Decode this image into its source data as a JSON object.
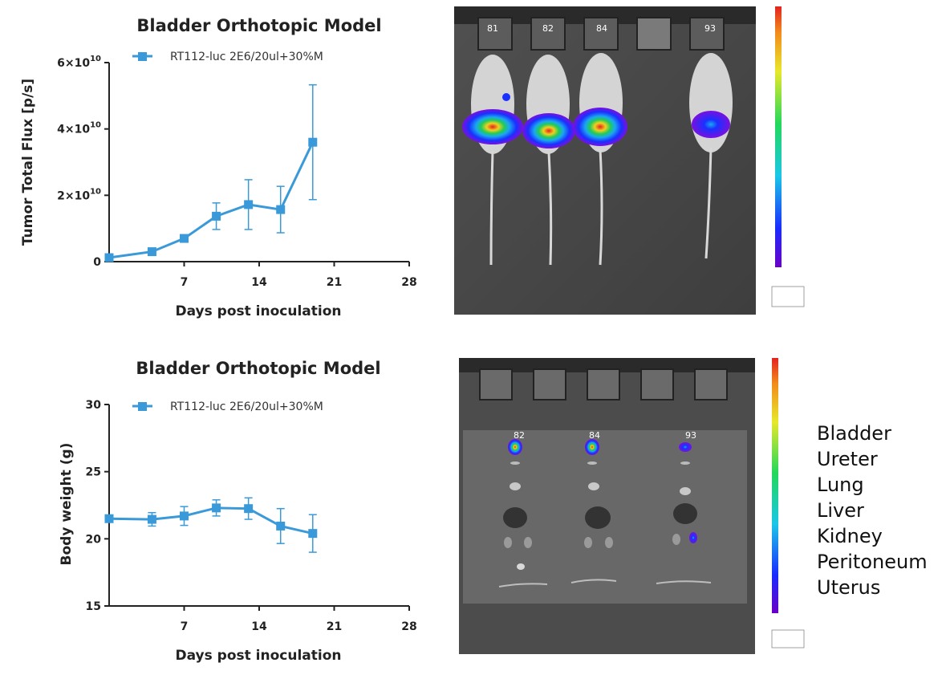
{
  "chart_data": [
    {
      "type": "line",
      "title": "Bladder Orthotopic Model",
      "xlabel": "Days post  inoculation",
      "ylabel": "Tumor Total Flux [p/s]",
      "xlim": [
        0,
        28
      ],
      "ylim": [
        0,
        60000000000.0
      ],
      "x_ticks": [
        7,
        14,
        21,
        28
      ],
      "y_ticks": [
        {
          "value": 0,
          "label": "0",
          "exp": ""
        },
        {
          "value": 20000000000.0,
          "label": "2×10",
          "exp": "10"
        },
        {
          "value": 40000000000.0,
          "label": "4×10",
          "exp": "10"
        },
        {
          "value": 60000000000.0,
          "label": "6×10",
          "exp": "10"
        }
      ],
      "legend": "top-left",
      "series": [
        {
          "name": "RT112-luc 2E6/20ul+30%M",
          "color": "#3a9ad9",
          "x": [
            0,
            4,
            7,
            10,
            13,
            16,
            19
          ],
          "y": [
            1200000000.0,
            3000000000.0,
            7000000000.0,
            13700000000.0,
            17200000000.0,
            15700000000.0,
            36000000000.0
          ],
          "err": [
            300000000.0,
            500000000.0,
            900000000.0,
            4000000000.0,
            7500000000.0,
            7000000000.0,
            17300000000.0
          ]
        }
      ]
    },
    {
      "type": "line",
      "title": "Bladder Orthotopic Model",
      "xlabel": "Days post  inoculation",
      "ylabel": "Body weight (g)",
      "xlim": [
        0,
        28
      ],
      "ylim": [
        15,
        30
      ],
      "x_ticks": [
        7,
        14,
        21,
        28
      ],
      "y_ticks": [
        {
          "value": 15,
          "label": "15",
          "exp": ""
        },
        {
          "value": 20,
          "label": "20",
          "exp": ""
        },
        {
          "value": 25,
          "label": "25",
          "exp": ""
        },
        {
          "value": 30,
          "label": "30",
          "exp": ""
        }
      ],
      "legend": "top-left",
      "series": [
        {
          "name": "RT112-luc 2E6/20ul+30%M",
          "color": "#3a9ad9",
          "x": [
            0,
            4,
            7,
            10,
            13,
            16,
            19
          ],
          "y": [
            21.5,
            21.45,
            21.7,
            22.3,
            22.25,
            20.95,
            20.4
          ],
          "err": [
            0.1,
            0.5,
            0.7,
            0.6,
            0.8,
            1.3,
            1.4
          ]
        }
      ]
    }
  ],
  "images": {
    "mice": {
      "ids": [
        "81",
        "82",
        "84",
        "93"
      ]
    },
    "organs": {
      "ids": [
        "82",
        "84",
        "93"
      ],
      "labels": [
        "Bladder",
        "Ureter",
        "Lung",
        "Liver",
        "Kidney",
        "Peritoneum",
        "Uterus"
      ]
    }
  },
  "colors": {
    "series": "#3a9ad9",
    "imaging_background": "#4a4a4a"
  }
}
